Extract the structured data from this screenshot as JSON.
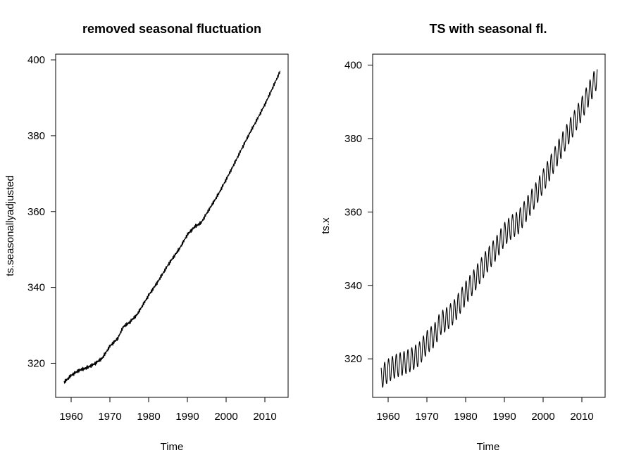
{
  "chart_data": [
    {
      "type": "line",
      "title": "removed seasonal fluctuation",
      "xlabel": "Time",
      "ylabel": "ts.seasonallyadjusted",
      "xlim": [
        1956,
        2016
      ],
      "ylim": [
        311,
        401.5
      ],
      "x_ticks": [
        1960,
        1970,
        1980,
        1990,
        2000,
        2010
      ],
      "y_ticks": [
        320,
        340,
        360,
        380,
        400
      ],
      "grid": false,
      "series": [
        {
          "x": [
            1958.2,
            1960,
            1962,
            1964,
            1966,
            1968,
            1970,
            1972,
            1973.5,
            1975,
            1977,
            1980,
            1982,
            1985,
            1988,
            1990,
            1992,
            1993.5,
            1996,
            1998,
            2000,
            2002,
            2004,
            2006,
            2008,
            2010,
            2012,
            2014
          ],
          "y": [
            315,
            316.8,
            318.1,
            318.8,
            319.8,
            321.3,
            324.5,
            326.5,
            329.7,
            330.7,
            332.8,
            337.9,
            340.9,
            345.9,
            350.3,
            353.9,
            356.1,
            357.0,
            361.2,
            364.6,
            368.4,
            372.4,
            376.5,
            380.5,
            384.3,
            388.2,
            392.6,
            397.1
          ]
        }
      ]
    },
    {
      "type": "line",
      "title": "TS with seasonal fl.",
      "xlabel": "Time",
      "ylabel": "ts.x",
      "xlim": [
        1956,
        2016
      ],
      "ylim": [
        309.5,
        403
      ],
      "x_ticks": [
        1960,
        1970,
        1980,
        1990,
        2000,
        2010
      ],
      "y_ticks": [
        320,
        340,
        360,
        380,
        400
      ],
      "grid": false,
      "seasonal_amplitude": 3.2,
      "series": [
        {
          "x": [
            1958.2,
            1960,
            1962,
            1964,
            1966,
            1968,
            1970,
            1972,
            1973.5,
            1975,
            1977,
            1980,
            1982,
            1985,
            1988,
            1990,
            1992,
            1993.5,
            1996,
            1998,
            2000,
            2002,
            2004,
            2006,
            2008,
            2010,
            2012,
            2014
          ],
          "y": [
            315,
            316.8,
            318.1,
            318.8,
            319.8,
            321.3,
            324.5,
            326.5,
            329.7,
            330.7,
            332.8,
            337.9,
            340.9,
            345.9,
            350.3,
            353.9,
            356.1,
            357.0,
            361.2,
            364.6,
            368.4,
            372.4,
            376.5,
            380.5,
            384.3,
            388.2,
            392.6,
            397.1
          ]
        }
      ]
    }
  ]
}
